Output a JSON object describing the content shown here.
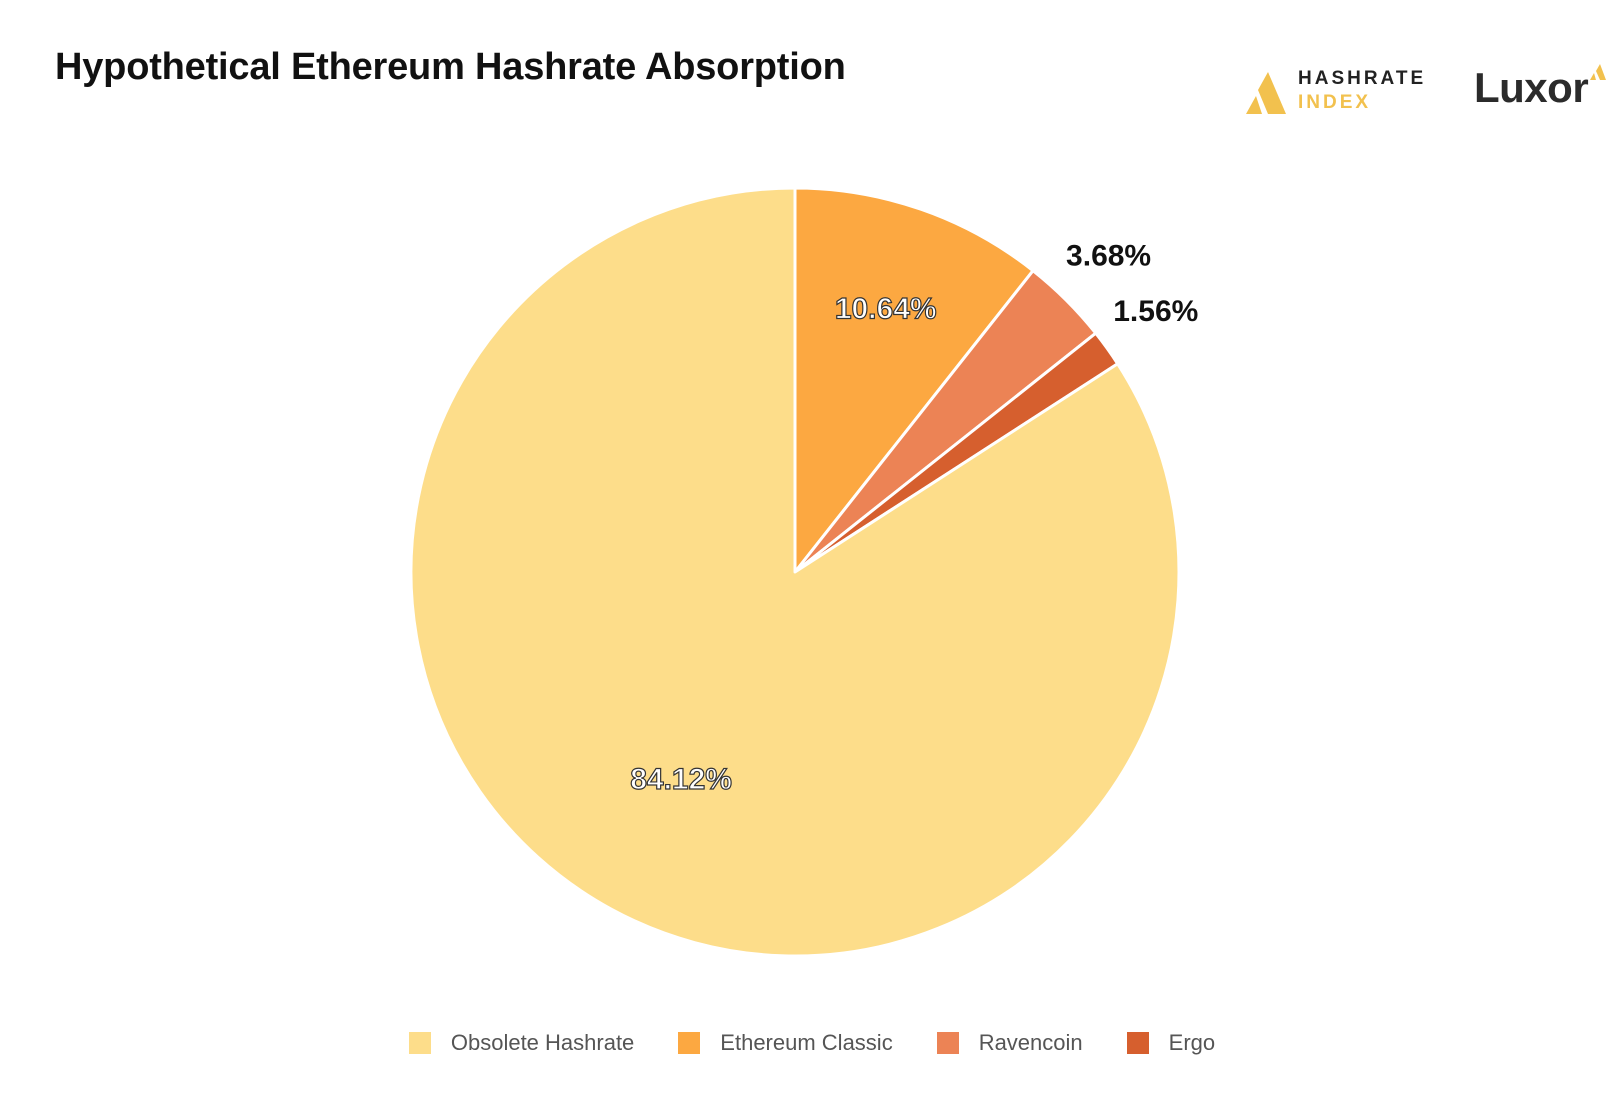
{
  "header": {
    "title": "Hypothetical Ethereum Hashrate Absorption",
    "brand_hashrate_line1": "HASHRATE",
    "brand_hashrate_line2": "INDEX",
    "brand_luxor": "Luxor",
    "icons": [
      "hashrate-index-logo-icon",
      "luxor-spark-icon"
    ]
  },
  "chart_data": {
    "type": "pie",
    "title": "Hypothetical Ethereum Hashrate Absorption",
    "categories": [
      "Obsolete Hashrate",
      "Ethereum Classic",
      "Ravencoin",
      "Ergo"
    ],
    "values": [
      84.12,
      10.64,
      3.68,
      1.56
    ],
    "labels": [
      "84.12%",
      "10.64%",
      "3.68%",
      "1.56%"
    ],
    "colors": [
      "#fddd8a",
      "#fca841",
      "#ec8355",
      "#d65f2e"
    ],
    "slice_order": [
      1,
      2,
      3,
      0
    ],
    "start": "12 o'clock, clockwise",
    "legend_position": "bottom"
  }
}
